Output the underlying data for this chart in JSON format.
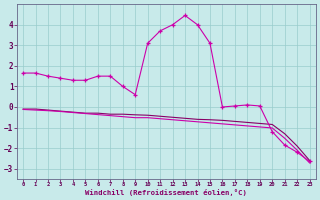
{
  "xlabel": "Windchill (Refroidissement éolien,°C)",
  "background_color": "#c8eaea",
  "grid_color": "#99cccc",
  "line_color_bright": "#cc00aa",
  "line_color_dark": "#880066",
  "x": [
    0,
    1,
    2,
    3,
    4,
    5,
    6,
    7,
    8,
    9,
    10,
    11,
    12,
    13,
    14,
    15,
    16,
    17,
    18,
    19,
    20,
    21,
    22,
    23
  ],
  "series_main": [
    1.65,
    1.65,
    1.5,
    1.4,
    1.3,
    1.3,
    1.5,
    1.5,
    1.0,
    0.6,
    3.1,
    3.7,
    4.0,
    4.45,
    4.0,
    3.1,
    0.0,
    0.05,
    0.1,
    0.05,
    -1.2,
    -1.85,
    -2.2,
    -2.65
  ],
  "series_low1": [
    -0.1,
    -0.1,
    -0.15,
    -0.2,
    -0.25,
    -0.3,
    -0.3,
    -0.35,
    -0.35,
    -0.38,
    -0.4,
    -0.45,
    -0.5,
    -0.55,
    -0.6,
    -0.62,
    -0.65,
    -0.7,
    -0.75,
    -0.8,
    -0.85,
    -1.3,
    -1.9,
    -2.6
  ],
  "series_low2": [
    -0.12,
    -0.15,
    -0.18,
    -0.22,
    -0.27,
    -0.32,
    -0.37,
    -0.42,
    -0.47,
    -0.52,
    -0.52,
    -0.57,
    -0.62,
    -0.67,
    -0.72,
    -0.77,
    -0.82,
    -0.87,
    -0.92,
    -0.97,
    -1.02,
    -1.52,
    -2.1,
    -2.72
  ],
  "ylim": [
    -3.5,
    5.0
  ],
  "yticks": [
    -3,
    -2,
    -1,
    0,
    1,
    2,
    3,
    4
  ],
  "xlim": [
    -0.5,
    23.5
  ]
}
